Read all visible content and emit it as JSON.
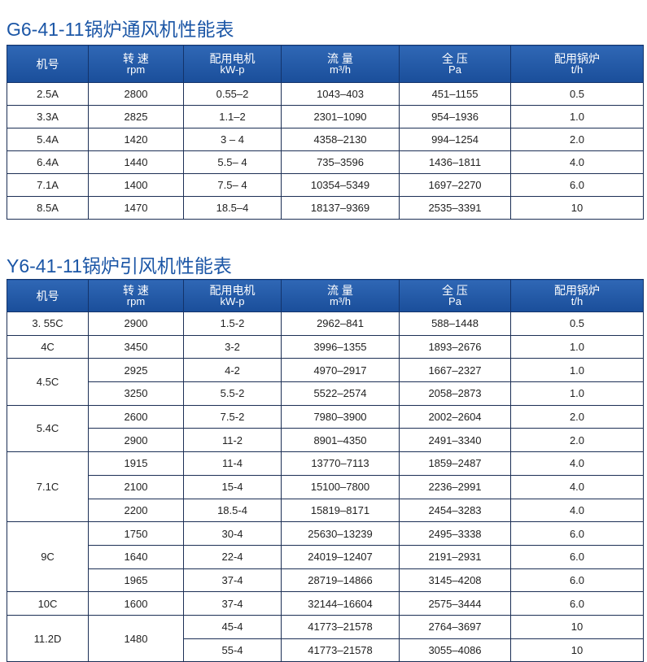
{
  "tables": [
    {
      "title": "G6-41-11锅炉通风机性能表",
      "headers": [
        {
          "label": "机号"
        },
        {
          "label": "转 速",
          "unit": "rpm"
        },
        {
          "label": "配用电机",
          "unit": "kW-p"
        },
        {
          "label": "流 量",
          "unit": "m³/h"
        },
        {
          "label": "全 压",
          "unit": "Pa"
        },
        {
          "label": "配用锅炉",
          "unit": "t/h"
        }
      ],
      "groups": [
        {
          "model": "2.5A",
          "rows": [
            {
              "rpm": "2800",
              "motor": "0.55–2",
              "flow": "1043–403",
              "pressure": "451–1155",
              "boiler": "0.5"
            }
          ]
        },
        {
          "model": "3.3A",
          "rows": [
            {
              "rpm": "2825",
              "motor": "1.1–2",
              "flow": "2301–1090",
              "pressure": "954–1936",
              "boiler": "1.0"
            }
          ]
        },
        {
          "model": "5.4A",
          "rows": [
            {
              "rpm": "1420",
              "motor": "3 – 4",
              "flow": "4358–2130",
              "pressure": "994–1254",
              "boiler": "2.0"
            }
          ]
        },
        {
          "model": "6.4A",
          "rows": [
            {
              "rpm": "1440",
              "motor": "5.5– 4",
              "flow": "735–3596",
              "pressure": "1436–1811",
              "boiler": "4.0"
            }
          ]
        },
        {
          "model": "7.1A",
          "rows": [
            {
              "rpm": "1400",
              "motor": "7.5– 4",
              "flow": "10354–5349",
              "pressure": "1697–2270",
              "boiler": "6.0"
            }
          ]
        },
        {
          "model": "8.5A",
          "rows": [
            {
              "rpm": "1470",
              "motor": "18.5–4",
              "flow": "18137–9369",
              "pressure": "2535–3391",
              "boiler": "10"
            }
          ]
        }
      ]
    },
    {
      "title": "Y6-41-11锅炉引风机性能表",
      "headers": [
        {
          "label": "机号"
        },
        {
          "label": "转 速",
          "unit": "rpm"
        },
        {
          "label": "配用电机",
          "unit": "kW-p"
        },
        {
          "label": "流 量",
          "unit": "m³/h"
        },
        {
          "label": "全 压",
          "unit": "Pa"
        },
        {
          "label": "配用锅炉",
          "unit": "t/h"
        }
      ],
      "groups": [
        {
          "model": "3. 55C",
          "rows": [
            {
              "rpm": "2900",
              "motor": "1.5-2",
              "flow": "2962–841",
              "pressure": "588–1448",
              "boiler": "0.5"
            }
          ]
        },
        {
          "model": "4C",
          "rows": [
            {
              "rpm": "3450",
              "motor": "3-2",
              "flow": "3996–1355",
              "pressure": "1893–2676",
              "boiler": "1.0"
            }
          ]
        },
        {
          "model": "4.5C",
          "rows": [
            {
              "rpm": "2925",
              "motor": "4-2",
              "flow": "4970–2917",
              "pressure": "1667–2327",
              "boiler": "1.0"
            },
            {
              "rpm": "3250",
              "motor": "5.5-2",
              "flow": "5522–2574",
              "pressure": "2058–2873",
              "boiler": "1.0"
            }
          ]
        },
        {
          "model": "5.4C",
          "rows": [
            {
              "rpm": "2600",
              "motor": "7.5-2",
              "flow": "7980–3900",
              "pressure": "2002–2604",
              "boiler": "2.0"
            },
            {
              "rpm": "2900",
              "motor": "11-2",
              "flow": "8901–4350",
              "pressure": "2491–3340",
              "boiler": "2.0"
            }
          ]
        },
        {
          "model": "7.1C",
          "rows": [
            {
              "rpm": "1915",
              "motor": "11-4",
              "flow": "13770–7113",
              "pressure": "1859–2487",
              "boiler": "4.0"
            },
            {
              "rpm": "2100",
              "motor": "15-4",
              "flow": "15100–7800",
              "pressure": "2236–2991",
              "boiler": "4.0"
            },
            {
              "rpm": "2200",
              "motor": "18.5-4",
              "flow": "15819–8171",
              "pressure": "2454–3283",
              "boiler": "4.0"
            }
          ]
        },
        {
          "model": "9C",
          "rows": [
            {
              "rpm": "1750",
              "motor": "30-4",
              "flow": "25630–13239",
              "pressure": "2495–3338",
              "boiler": "6.0"
            },
            {
              "rpm": "1640",
              "motor": "22-4",
              "flow": "24019–12407",
              "pressure": "2191–2931",
              "boiler": "6.0"
            },
            {
              "rpm": "1965",
              "motor": "37-4",
              "flow": "28719–14866",
              "pressure": "3145–4208",
              "boiler": "6.0"
            }
          ]
        },
        {
          "model": "10C",
          "rows": [
            {
              "rpm": "1600",
              "motor": "37-4",
              "flow": "32144–16604",
              "pressure": "2575–3444",
              "boiler": "6.0"
            }
          ]
        },
        {
          "model": "11.2D",
          "rpm": "1480",
          "rows": [
            {
              "motor": "45-4",
              "flow": "41773–21578",
              "pressure": "2764–3697",
              "boiler": "10"
            },
            {
              "motor": "55-4",
              "flow": "41773–21578",
              "pressure": "3055–4086",
              "boiler": "10"
            }
          ]
        }
      ]
    }
  ]
}
